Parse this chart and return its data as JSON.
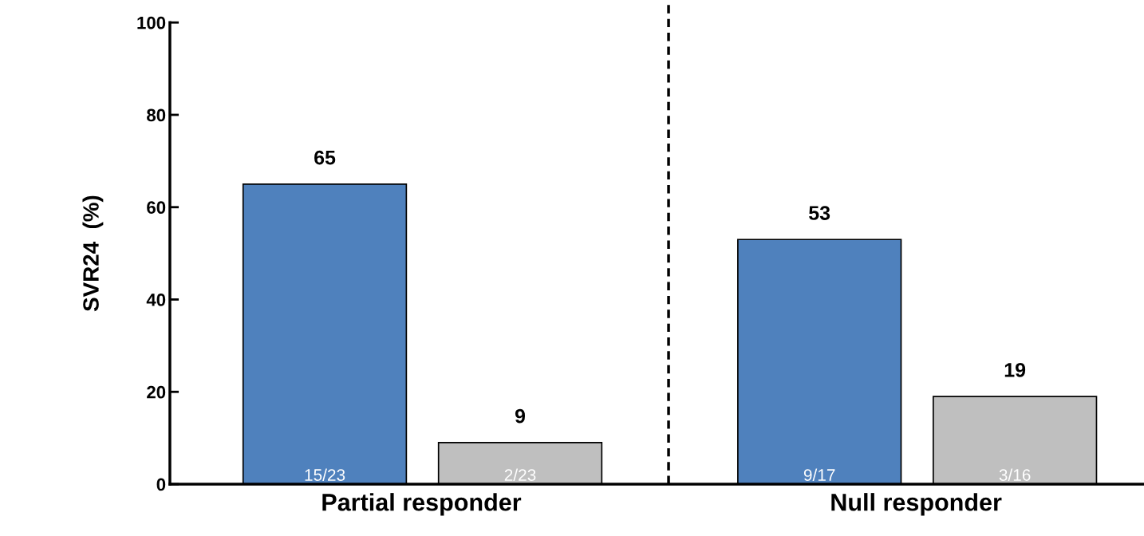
{
  "chart_data": {
    "type": "bar",
    "ylabel": "SVR24  (%)",
    "categories": [
      "Partial responder",
      "Null responder"
    ],
    "series": [
      {
        "color": "#4f81bd",
        "values": [
          65,
          53
        ]
      },
      {
        "color": "#bfbfbf",
        "values": [
          9,
          19
        ]
      }
    ],
    "data_labels": true,
    "ylim": [
      0,
      100
    ],
    "yticks": [
      0,
      20,
      40,
      60,
      80,
      100
    ],
    "grid": false,
    "legend": false,
    "annotations": [
      "15/23",
      "2/23",
      "9/17",
      "3/16"
    ]
  }
}
